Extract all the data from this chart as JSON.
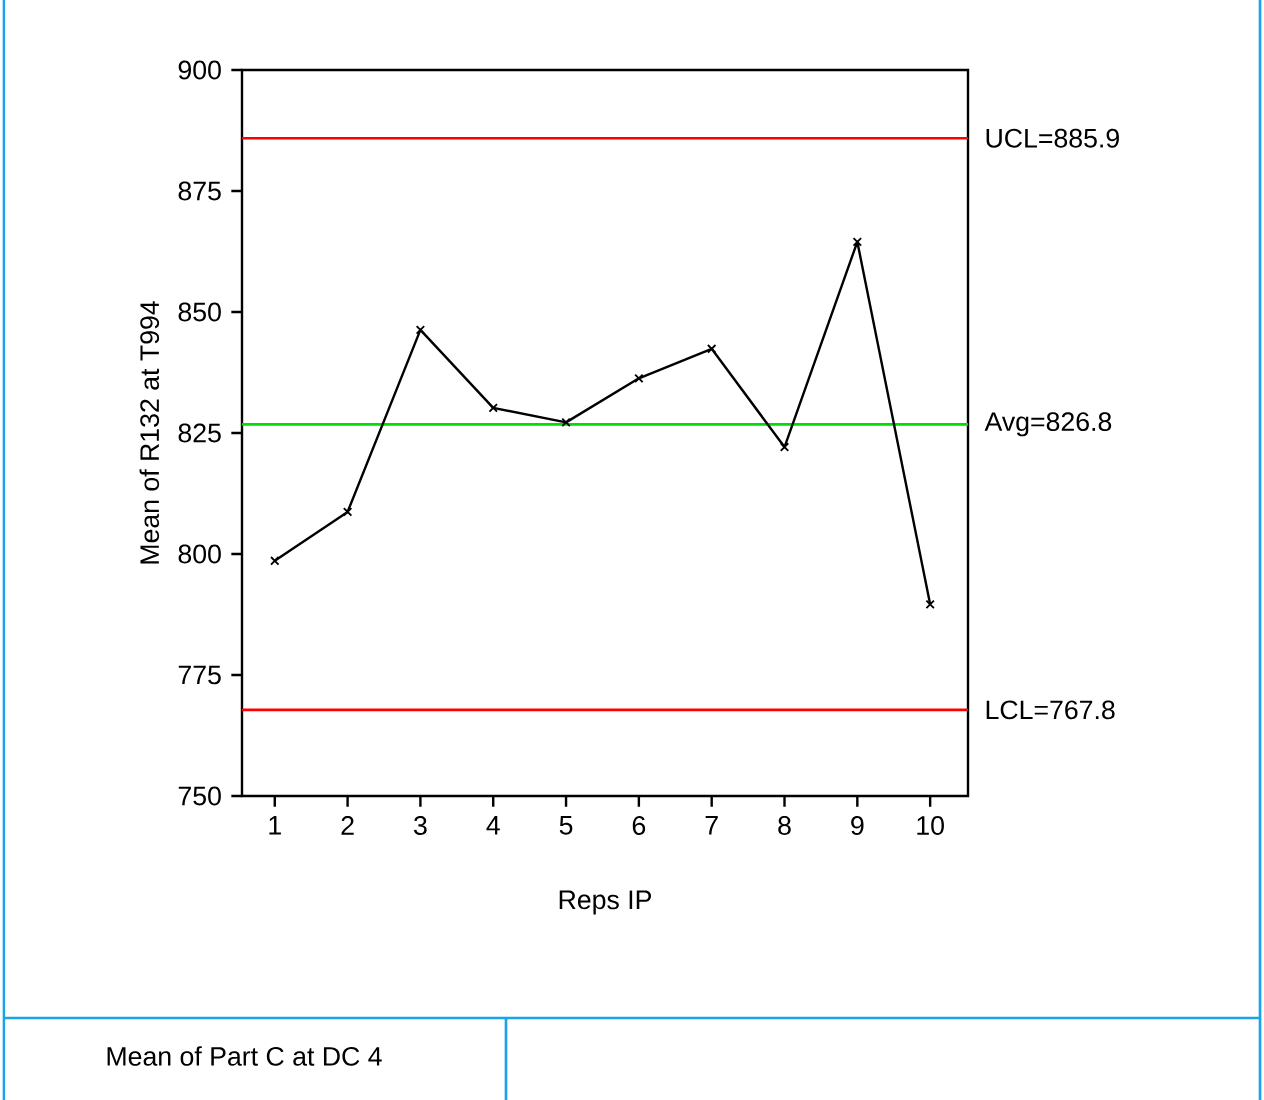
{
  "chart_data": {
    "type": "line",
    "xlabel": "Reps IP",
    "ylabel": "Mean of R132 at T994",
    "categories": [
      "1",
      "2",
      "3",
      "4",
      "5",
      "6",
      "7",
      "8",
      "9",
      "10"
    ],
    "series": [
      {
        "color": "#000000",
        "values": [
          798.6,
          808.7,
          846.3,
          830.2,
          827.2,
          836.3,
          842.4,
          822.1,
          864.5,
          789.6
        ]
      }
    ],
    "ylim": [
      750,
      900
    ],
    "yticks": [
      750,
      775,
      800,
      825,
      850,
      875,
      900
    ],
    "marker": "cross",
    "line_style": "solid",
    "ref_lines": [
      {
        "axis": "y",
        "value": 885.9,
        "label": "UCL=885.9",
        "color": "#ff0000"
      },
      {
        "axis": "y",
        "value": 826.8,
        "label": "Avg=826.8",
        "color": "#00dd00"
      },
      {
        "axis": "y",
        "value": 767.8,
        "label": "LCL=767.8",
        "color": "#ff0000"
      }
    ],
    "annotations": [
      "Mean of Part C at DC 4"
    ]
  }
}
